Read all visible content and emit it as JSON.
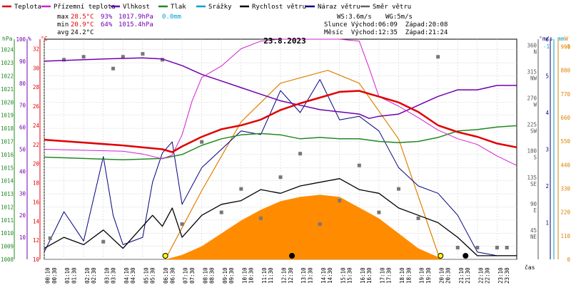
{
  "chart_data": {
    "type": "line",
    "title": "23.8.2023",
    "legend": [
      {
        "name": "Teplota",
        "color": "#e00000"
      },
      {
        "name": "Přízemní teplota",
        "color": "#d020d0"
      },
      {
        "name": "Vlhkost",
        "color": "#7000b0"
      },
      {
        "name": "Tlak",
        "color": "#228822"
      },
      {
        "name": "Srážky",
        "color": "#00a0d0"
      },
      {
        "name": "Rychlost větru",
        "color": "#000000"
      },
      {
        "name": "Náraz větru",
        "color": "#000080"
      },
      {
        "name": "Směr větru",
        "color": "#606060"
      }
    ],
    "stats": {
      "max_label": "max",
      "max_temp": "28.5°C",
      "max_hum": "93%",
      "max_press": "1017.9hPa",
      "rain": "0.0mm",
      "min_label": "min",
      "min_temp": "20.9°C",
      "min_hum": "64%",
      "min_press": "1015.4hPa",
      "avg_label": "avg",
      "avg_temp": "24.2°C",
      "ws": "WS:3.6m/s",
      "wg": "WG:5m/s",
      "sun": "Slunce Východ:06:09  Západ:20:08",
      "moon": "Měsíc  Východ:12:35  Západ:21:24"
    },
    "axis_headers": {
      "hpa": "hPa",
      "pct": "%",
      "degc": "°C",
      "deg": "°",
      "ms": "m/s",
      "mm": "mm",
      "w": "W",
      "cas": "čas"
    },
    "hpa_ticks": [
      "1008",
      "1009",
      "1010",
      "1011",
      "1012",
      "1013",
      "1014",
      "1015",
      "1016",
      "1017",
      "1018",
      "1019",
      "1020",
      "1021",
      "1022",
      "1023",
      "1024"
    ],
    "pct_ticks": [
      "10",
      "20",
      "30",
      "40",
      "50",
      "60",
      "70",
      "80",
      "90",
      "100"
    ],
    "temp_ticks": [
      "10",
      "12",
      "14",
      "16",
      "18",
      "20",
      "22",
      "24",
      "26",
      "28",
      "30",
      "32"
    ],
    "dir_ticks": [
      "45\nNE",
      "90\nE",
      "135\nSE",
      "180\nS",
      "225\nSW",
      "270\nW",
      "315\nNW",
      "360\nN"
    ],
    "ms_ticks": [
      "1",
      "2",
      "3",
      "4",
      "5",
      "6"
    ],
    "mm_ticks": [
      "-1"
    ],
    "w_ticks": [
      "0",
      "110",
      "220",
      "330",
      "440",
      "550",
      "660",
      "770",
      "880",
      "990"
    ],
    "w_top_label": "-1",
    "time_labels": [
      "00:10",
      "00:30",
      "01:10",
      "01:30",
      "02:10",
      "02:30",
      "03:10",
      "03:30",
      "04:10",
      "04:30",
      "05:10",
      "05:30",
      "06:10",
      "06:30",
      "07:10",
      "07:30",
      "08:10",
      "08:30",
      "09:10",
      "09:30",
      "10:10",
      "10:30",
      "11:10",
      "11:30",
      "12:10",
      "12:30",
      "13:10",
      "13:30",
      "14:10",
      "14:30",
      "15:10",
      "15:30",
      "16:10",
      "16:30",
      "17:10",
      "17:30",
      "18:10",
      "18:30",
      "19:10",
      "19:30",
      "20:10",
      "20:30",
      "21:10",
      "21:30",
      "22:10",
      "22:30",
      "23:10",
      "23:30"
    ],
    "series": {
      "temperature_c": [
        [
          0,
          22.5
        ],
        [
          2,
          22.2
        ],
        [
          4,
          21.9
        ],
        [
          6,
          21.5
        ],
        [
          6.5,
          21.2
        ],
        [
          7,
          21.8
        ],
        [
          8,
          22.8
        ],
        [
          9,
          23.6
        ],
        [
          10,
          24.0
        ],
        [
          11,
          24.6
        ],
        [
          12,
          25.6
        ],
        [
          13,
          26.3
        ],
        [
          14,
          26.9
        ],
        [
          15,
          27.5
        ],
        [
          16,
          27.6
        ],
        [
          16.5,
          27.3
        ],
        [
          17,
          27.0
        ],
        [
          18,
          26.4
        ],
        [
          19,
          25.4
        ],
        [
          20,
          24.0
        ],
        [
          21,
          23.3
        ],
        [
          22,
          22.8
        ],
        [
          23,
          22.1
        ],
        [
          24,
          21.7
        ]
      ],
      "ground_temp_c": [
        [
          0,
          21.5
        ],
        [
          4,
          21.3
        ],
        [
          5,
          21.0
        ],
        [
          6,
          20.5
        ],
        [
          6.5,
          20.9
        ],
        [
          7,
          23.0
        ],
        [
          7.5,
          26.5
        ],
        [
          8,
          29.0
        ],
        [
          9,
          30.2
        ],
        [
          10,
          32.0
        ],
        [
          11,
          32.8
        ],
        [
          12,
          33.0
        ],
        [
          13,
          33.0
        ],
        [
          14,
          33.0
        ],
        [
          15,
          33.0
        ],
        [
          16,
          32.8
        ],
        [
          16.5,
          30.0
        ],
        [
          17,
          27.0
        ],
        [
          18,
          26.0
        ],
        [
          19,
          24.8
        ],
        [
          20,
          23.5
        ],
        [
          21,
          22.6
        ],
        [
          22,
          22.0
        ],
        [
          23,
          20.8
        ],
        [
          24,
          19.8
        ]
      ],
      "humidity_pct": [
        [
          0,
          90
        ],
        [
          3,
          91
        ],
        [
          5,
          91.5
        ],
        [
          6,
          91
        ],
        [
          7,
          88
        ],
        [
          8,
          84
        ],
        [
          9,
          81
        ],
        [
          10,
          78
        ],
        [
          11,
          75
        ],
        [
          12,
          72
        ],
        [
          13,
          70
        ],
        [
          14,
          68
        ],
        [
          15,
          67
        ],
        [
          16,
          66
        ],
        [
          16.5,
          64
        ],
        [
          17,
          65
        ],
        [
          18,
          66
        ],
        [
          19,
          70
        ],
        [
          20,
          74
        ],
        [
          21,
          77
        ],
        [
          22,
          77
        ],
        [
          23,
          79
        ],
        [
          24,
          79
        ]
      ],
      "pressure_hpa": [
        [
          0,
          1015.8
        ],
        [
          2,
          1015.7
        ],
        [
          4,
          1015.6
        ],
        [
          6,
          1015.7
        ],
        [
          7,
          1016.0
        ],
        [
          8,
          1016.7
        ],
        [
          9,
          1017.2
        ],
        [
          10,
          1017.5
        ],
        [
          11,
          1017.6
        ],
        [
          12,
          1017.5
        ],
        [
          13,
          1017.2
        ],
        [
          14,
          1017.3
        ],
        [
          15,
          1017.2
        ],
        [
          16,
          1017.2
        ],
        [
          17,
          1017.0
        ],
        [
          18,
          1016.9
        ],
        [
          19,
          1017.0
        ],
        [
          20,
          1017.3
        ],
        [
          21,
          1017.8
        ],
        [
          22,
          1017.9
        ],
        [
          23,
          1018.1
        ],
        [
          24,
          1018.2
        ]
      ],
      "wind_speed_ms": [
        [
          0,
          0.3
        ],
        [
          1,
          0.6
        ],
        [
          2,
          0.4
        ],
        [
          3,
          0.8
        ],
        [
          4,
          0.3
        ],
        [
          5,
          0.9
        ],
        [
          5.5,
          1.2
        ],
        [
          6,
          0.9
        ],
        [
          6.5,
          1.4
        ],
        [
          7,
          0.6
        ],
        [
          8,
          1.2
        ],
        [
          9,
          1.5
        ],
        [
          10,
          1.6
        ],
        [
          11,
          1.9
        ],
        [
          12,
          1.8
        ],
        [
          13,
          2.0
        ],
        [
          14,
          2.1
        ],
        [
          15,
          2.2
        ],
        [
          16,
          1.9
        ],
        [
          17,
          1.8
        ],
        [
          18,
          1.4
        ],
        [
          19,
          1.2
        ],
        [
          20,
          1.0
        ],
        [
          21,
          0.6
        ],
        [
          22,
          0.1
        ],
        [
          23,
          0.1
        ],
        [
          24,
          0.1
        ]
      ],
      "wind_gust_ms": [
        [
          0,
          0.2
        ],
        [
          1,
          1.3
        ],
        [
          2,
          0.5
        ],
        [
          3,
          2.8
        ],
        [
          3.5,
          1.2
        ],
        [
          4,
          0.4
        ],
        [
          5,
          0.6
        ],
        [
          5.5,
          2.1
        ],
        [
          6,
          2.9
        ],
        [
          6.5,
          3.2
        ],
        [
          7,
          1.5
        ],
        [
          8,
          2.5
        ],
        [
          9,
          3.0
        ],
        [
          10,
          3.5
        ],
        [
          11,
          3.4
        ],
        [
          12,
          4.6
        ],
        [
          13,
          4.0
        ],
        [
          14,
          4.9
        ],
        [
          15,
          3.8
        ],
        [
          16,
          3.9
        ],
        [
          17,
          3.5
        ],
        [
          18,
          2.5
        ],
        [
          19,
          2.0
        ],
        [
          20,
          1.8
        ],
        [
          21,
          1.2
        ],
        [
          22,
          0.2
        ],
        [
          23,
          0.1
        ],
        [
          24,
          0.1
        ]
      ],
      "wind_dir_deg": [
        [
          0.3,
          36
        ],
        [
          1,
          340
        ],
        [
          2,
          345
        ],
        [
          3,
          30
        ],
        [
          3.5,
          325
        ],
        [
          4,
          345
        ],
        [
          5,
          350
        ],
        [
          6,
          340
        ],
        [
          7,
          60
        ],
        [
          8,
          200
        ],
        [
          9,
          80
        ],
        [
          10,
          120
        ],
        [
          11,
          70
        ],
        [
          12,
          140
        ],
        [
          13,
          180
        ],
        [
          14,
          60
        ],
        [
          15,
          100
        ],
        [
          16,
          160
        ],
        [
          17,
          80
        ],
        [
          18,
          120
        ],
        [
          19,
          70
        ],
        [
          20,
          345
        ],
        [
          21,
          20
        ],
        [
          22,
          20
        ],
        [
          23,
          20
        ],
        [
          23.5,
          20
        ]
      ],
      "solar_w": [
        [
          6.2,
          0
        ],
        [
          7,
          20
        ],
        [
          8,
          60
        ],
        [
          9,
          120
        ],
        [
          10,
          180
        ],
        [
          11,
          230
        ],
        [
          12,
          270
        ],
        [
          13,
          290
        ],
        [
          14,
          300
        ],
        [
          15,
          290
        ],
        [
          16,
          240
        ],
        [
          17,
          190
        ],
        [
          18,
          120
        ],
        [
          19,
          50
        ],
        [
          20,
          10
        ],
        [
          20.2,
          0
        ]
      ],
      "solar_theoretical_w": [
        [
          6.15,
          0
        ],
        [
          8,
          320
        ],
        [
          10,
          640
        ],
        [
          12,
          820
        ],
        [
          14.4,
          880
        ],
        [
          16,
          820
        ],
        [
          18,
          560
        ],
        [
          20.1,
          0
        ]
      ],
      "sun_events_h": [
        6.15,
        20.13
      ],
      "moon_events_h": [
        12.58,
        21.4
      ]
    }
  }
}
